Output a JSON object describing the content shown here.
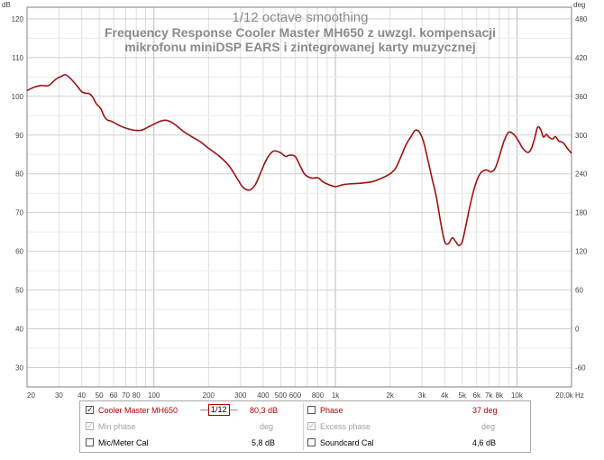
{
  "chart_data": {
    "type": "line",
    "title": "1/12 octave smoothing",
    "subtitle_lines": [
      "Frequency Response Cooler Master MH650 z uwzgl. kompensacji",
      "mikrofonu miniDSP EARS i zintegrowanej karty muzycznej"
    ],
    "x_scale": "log",
    "xlim": [
      20,
      20000
    ],
    "x_unit": "Hz",
    "x_ticks": [
      {
        "value": 20,
        "label": "20"
      },
      {
        "value": 30,
        "label": "30"
      },
      {
        "value": 40,
        "label": "40"
      },
      {
        "value": 50,
        "label": "50"
      },
      {
        "value": 60,
        "label": "60"
      },
      {
        "value": 70,
        "label": "70"
      },
      {
        "value": 80,
        "label": "80"
      },
      {
        "value": 100,
        "label": "100"
      },
      {
        "value": 200,
        "label": "200"
      },
      {
        "value": 300,
        "label": "300"
      },
      {
        "value": 400,
        "label": "400"
      },
      {
        "value": 500,
        "label": "500"
      },
      {
        "value": 600,
        "label": "600"
      },
      {
        "value": 800,
        "label": "800"
      },
      {
        "value": 1000,
        "label": "1k"
      },
      {
        "value": 2000,
        "label": "2k"
      },
      {
        "value": 3000,
        "label": "3k"
      },
      {
        "value": 4000,
        "label": "4k"
      },
      {
        "value": 5000,
        "label": "5k"
      },
      {
        "value": 6000,
        "label": "6k"
      },
      {
        "value": 7000,
        "label": "7k"
      },
      {
        "value": 8000,
        "label": "8k"
      },
      {
        "value": 10000,
        "label": "10k"
      },
      {
        "value": 20000,
        "label": "20,0k"
      }
    ],
    "ylim": [
      25,
      123
    ],
    "y_ticks": [
      30,
      40,
      50,
      60,
      70,
      80,
      90,
      100,
      110,
      120
    ],
    "y_left_unit": "dB",
    "y2_unit": "deg",
    "y2_ticks": [
      -60,
      0,
      60,
      120,
      180,
      240,
      300,
      360,
      420,
      480
    ],
    "grid": true,
    "series": [
      {
        "name": "Cooler Master MH650",
        "color": "#a01010",
        "points": [
          [
            20,
            101.5
          ],
          [
            22,
            102.4
          ],
          [
            24,
            102.8
          ],
          [
            26,
            102.7
          ],
          [
            27,
            103.2
          ],
          [
            29,
            104.5
          ],
          [
            31,
            105.2
          ],
          [
            32.5,
            105.6
          ],
          [
            34,
            105.0
          ],
          [
            36,
            103.8
          ],
          [
            38,
            102.5
          ],
          [
            40,
            101.2
          ],
          [
            42,
            100.8
          ],
          [
            44,
            100.7
          ],
          [
            46,
            99.8
          ],
          [
            48,
            98.2
          ],
          [
            51,
            96.8
          ],
          [
            53,
            95.0
          ],
          [
            55,
            94.0
          ],
          [
            58,
            93.6
          ],
          [
            60,
            93.3
          ],
          [
            65,
            92.4
          ],
          [
            70,
            91.8
          ],
          [
            75,
            91.4
          ],
          [
            80,
            91.2
          ],
          [
            86,
            91.3
          ],
          [
            95,
            92.3
          ],
          [
            105,
            93.3
          ],
          [
            113,
            93.8
          ],
          [
            120,
            93.7
          ],
          [
            130,
            92.8
          ],
          [
            145,
            91.0
          ],
          [
            160,
            89.7
          ],
          [
            180,
            88.3
          ],
          [
            200,
            86.6
          ],
          [
            230,
            84.5
          ],
          [
            260,
            82.0
          ],
          [
            290,
            78.5
          ],
          [
            310,
            76.5
          ],
          [
            335,
            75.8
          ],
          [
            360,
            77.0
          ],
          [
            385,
            80.0
          ],
          [
            410,
            83.0
          ],
          [
            435,
            85.0
          ],
          [
            460,
            85.9
          ],
          [
            500,
            85.4
          ],
          [
            530,
            84.5
          ],
          [
            560,
            84.8
          ],
          [
            600,
            84.5
          ],
          [
            640,
            82.0
          ],
          [
            680,
            79.8
          ],
          [
            740,
            78.9
          ],
          [
            800,
            79.0
          ],
          [
            850,
            78.0
          ],
          [
            920,
            77.2
          ],
          [
            1000,
            76.7
          ],
          [
            1100,
            77.2
          ],
          [
            1200,
            77.4
          ],
          [
            1400,
            77.6
          ],
          [
            1600,
            78.0
          ],
          [
            1800,
            78.9
          ],
          [
            2000,
            80.0
          ],
          [
            2150,
            81.5
          ],
          [
            2300,
            84.5
          ],
          [
            2450,
            87.5
          ],
          [
            2600,
            89.5
          ],
          [
            2750,
            91.2
          ],
          [
            2900,
            90.8
          ],
          [
            3050,
            88.5
          ],
          [
            3200,
            84.5
          ],
          [
            3400,
            79.0
          ],
          [
            3600,
            74.0
          ],
          [
            3800,
            67.5
          ],
          [
            4000,
            62.5
          ],
          [
            4200,
            62.0
          ],
          [
            4400,
            63.5
          ],
          [
            4600,
            62.5
          ],
          [
            4800,
            61.5
          ],
          [
            5000,
            62.5
          ],
          [
            5200,
            66.0
          ],
          [
            5500,
            71.5
          ],
          [
            5800,
            76.0
          ],
          [
            6100,
            79.0
          ],
          [
            6400,
            80.5
          ],
          [
            6800,
            81.0
          ],
          [
            7200,
            80.5
          ],
          [
            7600,
            81.5
          ],
          [
            8000,
            84.5
          ],
          [
            8500,
            88.5
          ],
          [
            9000,
            90.7
          ],
          [
            9600,
            90.2
          ],
          [
            10200,
            88.5
          ],
          [
            10800,
            86.5
          ],
          [
            11500,
            85.5
          ],
          [
            12000,
            86.5
          ],
          [
            12500,
            89.0
          ],
          [
            13000,
            92.0
          ],
          [
            13500,
            91.5
          ],
          [
            14000,
            89.5
          ],
          [
            14500,
            90.2
          ],
          [
            15000,
            89.5
          ],
          [
            15700,
            89.0
          ],
          [
            16300,
            89.6
          ],
          [
            17000,
            88.5
          ],
          [
            18000,
            88.0
          ],
          [
            19000,
            86.5
          ],
          [
            20000,
            85.3
          ]
        ]
      }
    ]
  },
  "legend": {
    "row1": {
      "left_label": "Cooler Master MH650",
      "left_checked": true,
      "smoothing_label": "1/12",
      "left_value": "80,3 dB",
      "right_label": "Phase",
      "right_checked": false,
      "right_value": "37 deg"
    },
    "row2": {
      "left_label": "Min phase",
      "left_checked": true,
      "left_value": "deg",
      "right_label": "Excess phase",
      "right_checked": true,
      "right_value": "deg"
    },
    "row3": {
      "left_label": "Mic/Meter Cal",
      "left_checked": false,
      "left_value": "5,8 dB",
      "right_label": "Soundcard Cal",
      "right_checked": false,
      "right_value": "4,6 dB"
    }
  }
}
